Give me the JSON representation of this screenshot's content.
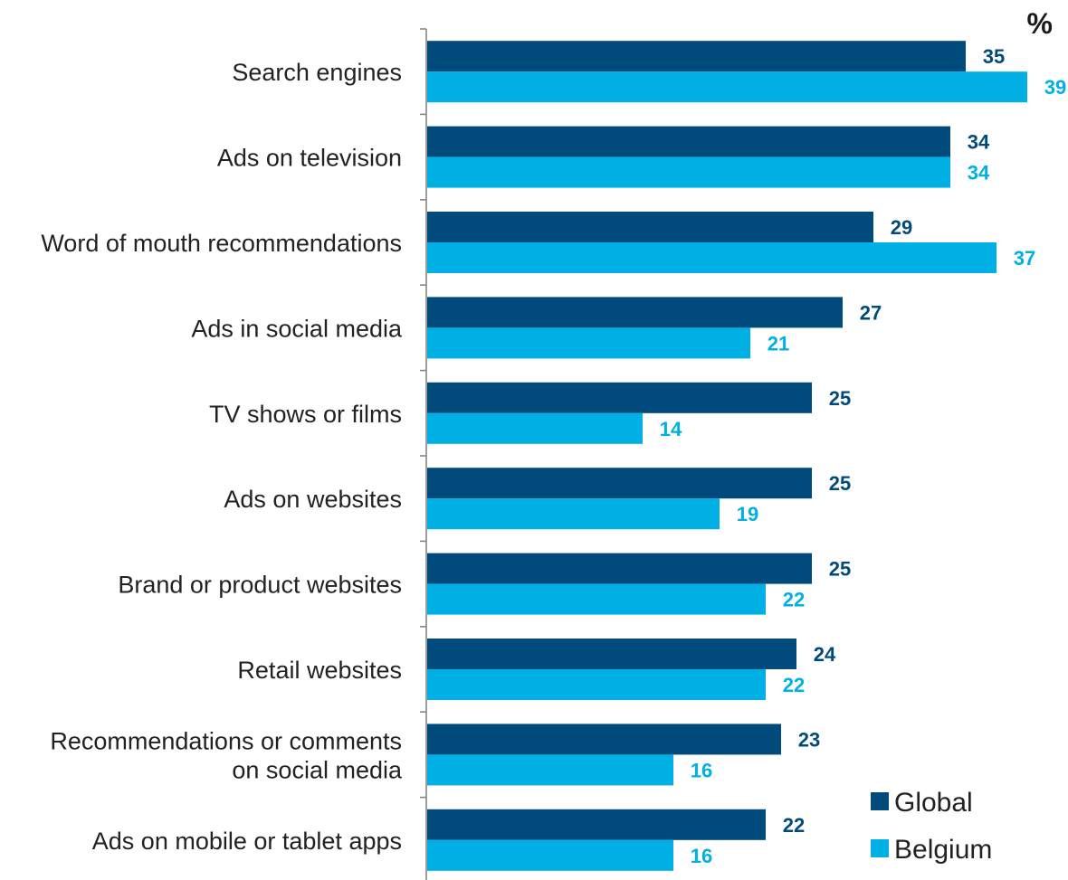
{
  "chart_data": {
    "type": "bar",
    "orientation": "horizontal",
    "unit_label": "%",
    "categories": [
      "Search engines",
      "Ads on television",
      "Word of mouth recommendations",
      "Ads in social media",
      "TV shows or films",
      "Ads on websites",
      "Brand or product websites",
      "Retail websites",
      "Recommendations or comments\non social media",
      "Ads on mobile or tablet apps"
    ],
    "series": [
      {
        "name": "Global",
        "color": "#004b7c",
        "values": [
          35,
          34,
          29,
          27,
          25,
          25,
          25,
          24,
          23,
          22
        ]
      },
      {
        "name": "Belgium",
        "color": "#00b0e4",
        "values": [
          39,
          34,
          37,
          21,
          14,
          19,
          22,
          22,
          16,
          16
        ]
      }
    ],
    "xlim": [
      0,
      40
    ],
    "grid": false,
    "legend_position": "bottom-right",
    "data_labels": true
  }
}
